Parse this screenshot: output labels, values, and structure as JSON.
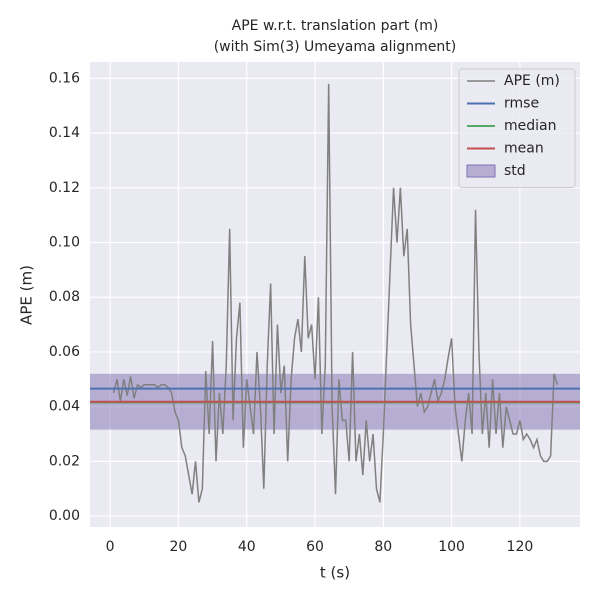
{
  "chart_data": {
    "type": "line",
    "title": "APE w.r.t. translation part (m)",
    "subtitle": "(with Sim(3) Umeyama alignment)",
    "x_label": "t (s)",
    "y_label": "APE (m)",
    "xlim": [
      -5.9,
      137.6
    ],
    "ylim": [
      -0.004,
      0.166
    ],
    "xticks": [
      0,
      20,
      40,
      60,
      80,
      100,
      120
    ],
    "yticks": [
      {
        "value": 0,
        "label": "0.00"
      },
      {
        "value": 0.02,
        "label": "0.02"
      },
      {
        "value": 0.04,
        "label": "0.04"
      },
      {
        "value": 0.06,
        "label": "0.06"
      },
      {
        "value": 0.08,
        "label": "0.08"
      },
      {
        "value": 0.1,
        "label": "0.10"
      },
      {
        "value": 0.12,
        "label": "0.12"
      },
      {
        "value": 0.14,
        "label": "0.14"
      },
      {
        "value": 0.16,
        "label": "0.16"
      }
    ],
    "grid": true,
    "legend": "upper right",
    "x": [
      1,
      2,
      3,
      4,
      5,
      6,
      7,
      8,
      9,
      10,
      11,
      12,
      13,
      14,
      15,
      16,
      17,
      18,
      19,
      20,
      21,
      22,
      23,
      24,
      25,
      26,
      27,
      28,
      29,
      30,
      31,
      32,
      33,
      34,
      35,
      36,
      37,
      38,
      39,
      40,
      41,
      42,
      43,
      44,
      45,
      46,
      47,
      48,
      49,
      50,
      51,
      52,
      53,
      54,
      55,
      56,
      57,
      58,
      59,
      60,
      61,
      62,
      63,
      64,
      65,
      66,
      67,
      68,
      69,
      70,
      71,
      72,
      73,
      74,
      75,
      76,
      77,
      78,
      79,
      80,
      81,
      82,
      83,
      84,
      85,
      86,
      87,
      88,
      89,
      90,
      91,
      92,
      93,
      94,
      95,
      96,
      97,
      98,
      99,
      100,
      101,
      102,
      103,
      104,
      105,
      106,
      107,
      108,
      109,
      110,
      111,
      112,
      113,
      114,
      115,
      116,
      117,
      118,
      119,
      120,
      121,
      122,
      123,
      124,
      125,
      126,
      127,
      128,
      129,
      130,
      131
    ],
    "series": [
      {
        "name": "APE (m)",
        "color": "#808080",
        "values": [
          0.045,
          0.05,
          0.042,
          0.05,
          0.044,
          0.051,
          0.043,
          0.048,
          0.047,
          0.048,
          0.048,
          0.048,
          0.048,
          0.047,
          0.048,
          0.048,
          0.047,
          0.045,
          0.038,
          0.035,
          0.025,
          0.022,
          0.015,
          0.008,
          0.02,
          0.005,
          0.01,
          0.053,
          0.03,
          0.064,
          0.02,
          0.045,
          0.03,
          0.055,
          0.105,
          0.035,
          0.065,
          0.078,
          0.025,
          0.05,
          0.04,
          0.03,
          0.06,
          0.04,
          0.01,
          0.055,
          0.085,
          0.03,
          0.07,
          0.045,
          0.055,
          0.02,
          0.05,
          0.065,
          0.072,
          0.06,
          0.095,
          0.065,
          0.07,
          0.05,
          0.08,
          0.03,
          0.055,
          0.158,
          0.04,
          0.008,
          0.05,
          0.035,
          0.035,
          0.02,
          0.06,
          0.02,
          0.03,
          0.015,
          0.035,
          0.02,
          0.03,
          0.01,
          0.005,
          0.03,
          0.06,
          0.09,
          0.12,
          0.1,
          0.12,
          0.095,
          0.105,
          0.07,
          0.055,
          0.04,
          0.045,
          0.038,
          0.04,
          0.045,
          0.05,
          0.042,
          0.045,
          0.05,
          0.058,
          0.065,
          0.04,
          0.03,
          0.02,
          0.035,
          0.045,
          0.03,
          0.112,
          0.06,
          0.03,
          0.045,
          0.025,
          0.05,
          0.03,
          0.045,
          0.025,
          0.04,
          0.035,
          0.03,
          0.03,
          0.035,
          0.028,
          0.03,
          0.028,
          0.025,
          0.028,
          0.022,
          0.02,
          0.02,
          0.022,
          0.052,
          0.048
        ]
      }
    ],
    "stats": [
      {
        "name": "rmse",
        "value": 0.0466,
        "color": "#4c72b0"
      },
      {
        "name": "median",
        "value": 0.0415,
        "color": "#55a868"
      },
      {
        "name": "mean",
        "value": 0.0418,
        "color": "#c44e52"
      }
    ],
    "std": {
      "name": "std",
      "value": 0.0102,
      "color": "#8172b2"
    }
  }
}
